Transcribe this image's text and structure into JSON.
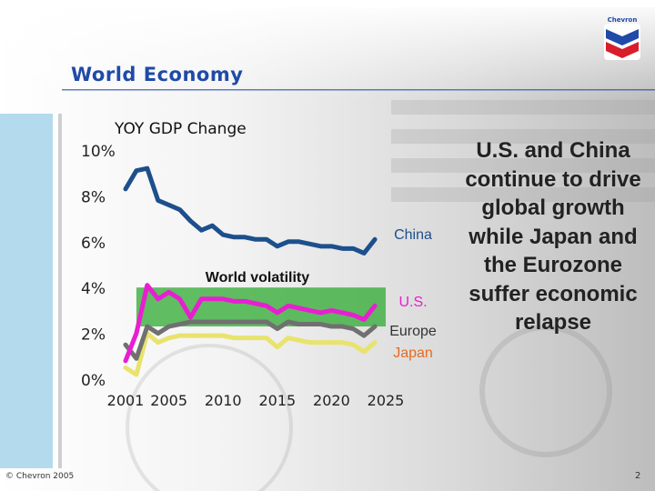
{
  "slide": {
    "title": "World Economy",
    "side_text": "U.S. and China continue to drive global growth while Japan and the Eurozone suffer economic relapse",
    "copyright": "© Chevron 2005",
    "page_number": "2",
    "logo_text": "Chevron"
  },
  "colors": {
    "title": "#1f4aa8",
    "china": "#1d4f8c",
    "us": "#e81ed1",
    "europe": "#707070",
    "japan": "#e8e36c",
    "band": "#2eaa30"
  },
  "chart_data": {
    "type": "line",
    "title": "YOY GDP Change",
    "xlabel": "",
    "ylabel": "",
    "xlim": [
      2001,
      2025
    ],
    "ylim": [
      0,
      10
    ],
    "x_ticks": [
      "2001",
      "2005",
      "2010",
      "2015",
      "2020",
      "2025"
    ],
    "x_tick_values": [
      2001,
      2005,
      2010,
      2015,
      2020,
      2025
    ],
    "y_ticks": [
      "0%",
      "2%",
      "4%",
      "6%",
      "8%",
      "10%"
    ],
    "y_tick_values": [
      0,
      2,
      4,
      6,
      8,
      10
    ],
    "band": {
      "label": "World volatility",
      "y_range": [
        2.3,
        4.0
      ],
      "x_range": [
        2002,
        2025
      ]
    },
    "series": [
      {
        "name": "China",
        "label_text": "China",
        "x": [
          2001,
          2002,
          2003,
          2004,
          2005,
          2006,
          2007,
          2008,
          2009,
          2010,
          2011,
          2012,
          2013,
          2014,
          2015,
          2016,
          2017,
          2018,
          2019,
          2020,
          2021,
          2022,
          2023,
          2024
        ],
        "y": [
          8.3,
          9.1,
          9.2,
          7.8,
          7.6,
          7.4,
          6.9,
          6.5,
          6.7,
          6.3,
          6.2,
          6.2,
          6.1,
          6.1,
          5.8,
          6.0,
          6.0,
          5.9,
          5.8,
          5.8,
          5.7,
          5.7,
          5.5,
          6.1
        ]
      },
      {
        "name": "U.S.",
        "label_text": "U.S.",
        "x": [
          2001,
          2002,
          2003,
          2004,
          2005,
          2006,
          2007,
          2008,
          2009,
          2010,
          2011,
          2012,
          2013,
          2014,
          2015,
          2016,
          2017,
          2018,
          2019,
          2020,
          2021,
          2022,
          2023,
          2024
        ],
        "y": [
          0.8,
          2.0,
          4.1,
          3.5,
          3.8,
          3.5,
          2.7,
          3.5,
          3.5,
          3.5,
          3.4,
          3.4,
          3.3,
          3.2,
          2.9,
          3.2,
          3.1,
          3.0,
          2.9,
          3.0,
          2.9,
          2.8,
          2.6,
          3.2
        ]
      },
      {
        "name": "Europe",
        "label_text": "Europe",
        "x": [
          2001,
          2002,
          2003,
          2004,
          2005,
          2006,
          2007,
          2008,
          2009,
          2010,
          2011,
          2012,
          2013,
          2014,
          2015,
          2016,
          2017,
          2018,
          2019,
          2020,
          2021,
          2022,
          2023,
          2024
        ],
        "y": [
          1.5,
          0.9,
          2.3,
          2.0,
          2.3,
          2.4,
          2.5,
          2.5,
          2.5,
          2.5,
          2.5,
          2.5,
          2.5,
          2.5,
          2.2,
          2.5,
          2.4,
          2.4,
          2.4,
          2.3,
          2.3,
          2.2,
          1.9,
          2.3
        ]
      },
      {
        "name": "Japan",
        "label_text": "Japan",
        "x": [
          2001,
          2002,
          2003,
          2004,
          2005,
          2006,
          2007,
          2008,
          2009,
          2010,
          2011,
          2012,
          2013,
          2014,
          2015,
          2016,
          2017,
          2018,
          2019,
          2020,
          2021,
          2022,
          2023,
          2024
        ],
        "y": [
          0.5,
          0.2,
          2.0,
          1.6,
          1.8,
          1.9,
          1.9,
          1.9,
          1.9,
          1.9,
          1.8,
          1.8,
          1.8,
          1.8,
          1.4,
          1.8,
          1.7,
          1.6,
          1.6,
          1.6,
          1.6,
          1.5,
          1.2,
          1.6
        ]
      }
    ]
  }
}
